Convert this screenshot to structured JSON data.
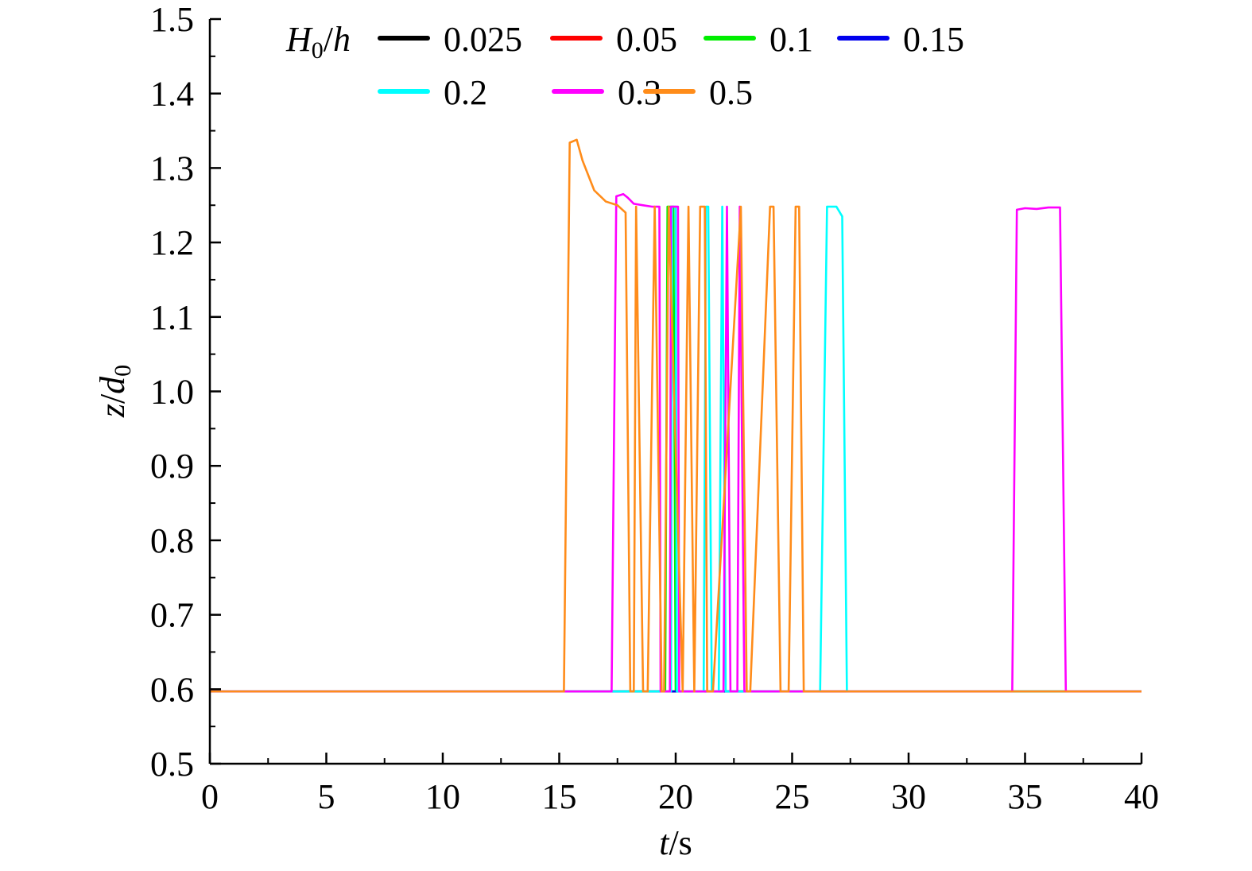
{
  "chart_data": {
    "type": "line",
    "xlabel": {
      "var": "t",
      "unit": "/s"
    },
    "ylabel": {
      "var": "z",
      "sep": "/",
      "var2": "d",
      "sub": "0"
    },
    "xlim": [
      0,
      40
    ],
    "ylim": [
      0.5,
      1.5
    ],
    "x_ticks": [
      0,
      5,
      10,
      15,
      20,
      25,
      30,
      35,
      40
    ],
    "y_ticks": [
      0.5,
      0.6,
      0.7,
      0.8,
      0.9,
      1.0,
      1.1,
      1.2,
      1.3,
      1.4,
      1.5
    ],
    "x_tick_labels": [
      "0",
      "5",
      "10",
      "15",
      "20",
      "25",
      "30",
      "35",
      "40"
    ],
    "y_tick_labels": [
      "0.5",
      "0.6",
      "0.7",
      "0.8",
      "0.9",
      "1.0",
      "1.1",
      "1.2",
      "1.3",
      "1.4",
      "1.5"
    ],
    "grid": false,
    "legend": {
      "title": {
        "var": "H",
        "sub": "0",
        "sep": "/",
        "var2": "h"
      },
      "placement": "top",
      "rows": [
        [
          0,
          1,
          2,
          3
        ],
        [
          4,
          5,
          6
        ]
      ]
    },
    "series": [
      {
        "name": "0.025",
        "color": "#000000",
        "x": [
          0,
          40
        ],
        "y": [
          0.597,
          0.597
        ]
      },
      {
        "name": "0.05",
        "color": "#ff0000",
        "x": [
          0,
          40
        ],
        "y": [
          0.597,
          0.597
        ]
      },
      {
        "name": "0.1",
        "color": "#00ee00",
        "x": [
          0,
          19.55,
          19.65,
          19.9,
          20.0,
          40
        ],
        "y": [
          0.597,
          0.597,
          1.248,
          1.248,
          0.597,
          0.597
        ]
      },
      {
        "name": "0.15",
        "color": "#0000ee",
        "x": [
          0,
          19.3,
          19.4,
          19.5,
          19.6,
          21.0,
          21.1,
          21.2,
          21.3,
          40
        ],
        "y": [
          0.597,
          0.597,
          0.597,
          0.597,
          0.597,
          0.597,
          0.597,
          0.597,
          0.597,
          0.597
        ]
      },
      {
        "name": "0.2",
        "color": "#00ffff",
        "x": [
          0,
          19.8,
          19.85,
          20.0,
          20.05,
          21.2,
          21.3,
          21.4,
          21.55,
          21.85,
          22.0,
          22.15,
          26.2,
          26.5,
          26.9,
          27.15,
          27.35,
          40
        ],
        "y": [
          0.597,
          0.597,
          1.248,
          1.248,
          0.597,
          0.597,
          1.248,
          1.248,
          0.597,
          0.597,
          1.248,
          0.597,
          0.597,
          1.248,
          1.248,
          1.235,
          0.597,
          0.597
        ]
      },
      {
        "name": "0.3",
        "color": "#ff00ff",
        "x": [
          0,
          17.25,
          17.45,
          17.75,
          17.95,
          18.2,
          18.6,
          19.0,
          19.25,
          19.3,
          19.35,
          19.75,
          19.8,
          20.1,
          20.15,
          22.05,
          22.2,
          22.35,
          22.65,
          22.75,
          22.95,
          34.45,
          34.65,
          35.0,
          35.5,
          36.0,
          36.5,
          36.75,
          40
        ],
        "y": [
          0.597,
          0.597,
          1.262,
          1.265,
          1.26,
          1.252,
          1.25,
          1.248,
          1.248,
          1.248,
          0.597,
          0.597,
          1.248,
          1.248,
          0.597,
          0.597,
          1.248,
          0.597,
          0.597,
          1.248,
          0.597,
          0.597,
          1.244,
          1.246,
          1.245,
          1.247,
          1.247,
          0.597,
          0.597
        ]
      },
      {
        "name": "0.5",
        "color": "#ff8c1a",
        "x": [
          0,
          15.2,
          15.45,
          15.75,
          16.0,
          16.5,
          17.0,
          17.5,
          17.85,
          18.05,
          18.2,
          18.3,
          18.6,
          18.8,
          19.1,
          19.4,
          19.5,
          19.7,
          20.3,
          20.55,
          20.8,
          21.05,
          21.25,
          21.35,
          21.6,
          22.8,
          23.05,
          23.2,
          24.05,
          24.2,
          24.5,
          24.85,
          25.15,
          25.3,
          25.5,
          40
        ],
        "y": [
          0.597,
          0.597,
          1.334,
          1.338,
          1.31,
          1.27,
          1.255,
          1.25,
          1.24,
          0.597,
          0.597,
          1.248,
          0.597,
          0.597,
          1.248,
          0.597,
          0.597,
          1.248,
          0.597,
          1.248,
          0.597,
          1.248,
          1.248,
          0.597,
          0.597,
          1.248,
          0.597,
          0.597,
          1.248,
          1.248,
          0.597,
          0.597,
          1.248,
          1.248,
          0.597,
          0.597
        ]
      }
    ]
  }
}
